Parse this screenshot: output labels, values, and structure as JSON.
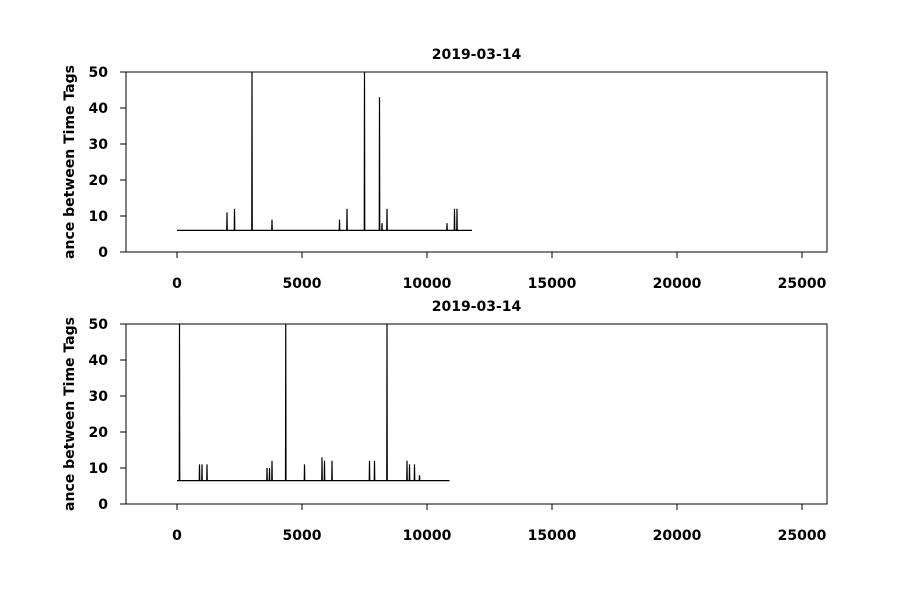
{
  "chart_data": [
    {
      "type": "line",
      "title": "2019-03-14",
      "y_label": "ance between Time Tags",
      "x": [
        0,
        1990,
        2000,
        2010,
        2290,
        2300,
        2310,
        2990,
        3000,
        3010,
        3790,
        3800,
        3810,
        6490,
        6500,
        6510,
        6790,
        6800,
        6810,
        7490,
        7500,
        7510,
        8090,
        8100,
        8110,
        8190,
        8200,
        8210,
        8390,
        8400,
        8410,
        10790,
        10800,
        10810,
        11090,
        11100,
        11110,
        11190,
        11200,
        11210,
        11800
      ],
      "series": [
        {
          "color": "#000000",
          "values": [
            6,
            6,
            11,
            6,
            6,
            12,
            6,
            6,
            50,
            6,
            6,
            9,
            6,
            6,
            9,
            6,
            6,
            12,
            6,
            6,
            50,
            6,
            6,
            43,
            6,
            6,
            8,
            6,
            6,
            12,
            6,
            6,
            8,
            6,
            6,
            12,
            6,
            6,
            12,
            6,
            6
          ]
        }
      ],
      "xlim": [
        -2040,
        26000
      ],
      "xticks": [
        0,
        5000,
        10000,
        15000,
        20000,
        25000
      ],
      "ylim": [
        0,
        50
      ],
      "yticks": [
        0,
        10,
        20,
        30,
        40,
        50
      ]
    },
    {
      "type": "line",
      "title": "2019-03-14",
      "y_label": "ance between Time Tags",
      "x": [
        0,
        90,
        100,
        110,
        890,
        900,
        910,
        990,
        1000,
        1010,
        1190,
        1200,
        1210,
        3590,
        3600,
        3610,
        3690,
        3700,
        3710,
        3790,
        3800,
        3810,
        4340,
        4350,
        4360,
        5090,
        5100,
        5110,
        5790,
        5800,
        5810,
        5890,
        5900,
        5910,
        6190,
        6200,
        6210,
        7690,
        7700,
        7710,
        7890,
        7900,
        7910,
        8390,
        8400,
        8410,
        9190,
        9200,
        9210,
        9290,
        9300,
        9310,
        9490,
        9500,
        9510,
        9690,
        9700,
        9710,
        10900
      ],
      "series": [
        {
          "color": "#000000",
          "values": [
            6.5,
            6.5,
            50,
            6.5,
            6.5,
            11,
            6.5,
            6.5,
            11,
            6.5,
            6.5,
            11,
            6.5,
            6.5,
            10,
            6.5,
            6.5,
            10,
            6.5,
            6.5,
            12,
            6.5,
            6.5,
            50,
            6.5,
            6.5,
            11,
            6.5,
            6.5,
            13,
            6.5,
            6.5,
            12,
            6.5,
            6.5,
            12,
            6.5,
            6.5,
            12,
            6.5,
            6.5,
            12,
            6.5,
            6.5,
            50,
            6.5,
            6.5,
            12,
            6.5,
            6.5,
            11,
            6.5,
            6.5,
            11,
            6.5,
            6.5,
            8,
            6.5,
            6.5
          ]
        }
      ],
      "xlim": [
        -2040,
        26000
      ],
      "xticks": [
        0,
        5000,
        10000,
        15000,
        20000,
        25000
      ],
      "ylim": [
        0,
        50
      ],
      "yticks": [
        0,
        10,
        20,
        30,
        40,
        50
      ]
    }
  ]
}
